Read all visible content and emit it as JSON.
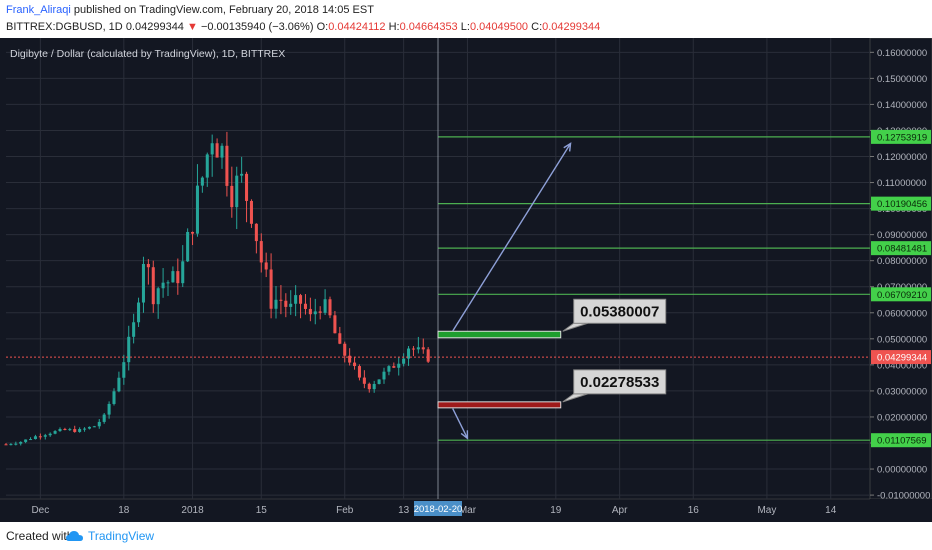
{
  "header": {
    "author": "Frank_Aliraqi",
    "published_text": "published on TradingView.com, February 20, 2018 14:05 EST",
    "symbol": "BITTREX:DGBUSD, 1D",
    "last": "0.04299344",
    "change": "−0.00135940 (−3.06%)",
    "o_label": "O:",
    "o": "0.04424112",
    "h_label": "H:",
    "h": "0.04664353",
    "l_label": "L:",
    "l": "0.04049500",
    "c_label": "C:",
    "c": "0.04299344"
  },
  "footer": {
    "created_with": "Created with",
    "brand": "TradingView"
  },
  "colors": {
    "background": "#131722",
    "grid": "#2a2e39",
    "up": "#26a69a",
    "down": "#ef5350",
    "level_line": "#4caf50",
    "axis_text": "#b2b5be",
    "up_box": "#1e9e2e",
    "down_box": "#9e1a1a",
    "arrow": "#8ea0d8"
  },
  "chart_data": {
    "type": "candlestick",
    "title": "Digibyte / Dollar (calculated by TradingView), 1D, BITTREX",
    "y_ticks": [
      "-0.01000000",
      "0.00000000",
      "0.01000000",
      "0.02000000",
      "0.03000000",
      "0.04000000",
      "0.05000000",
      "0.06000000",
      "0.07000000",
      "0.08000000",
      "0.09000000",
      "0.10000000",
      "0.11000000",
      "0.12000000",
      "0.13000000",
      "0.14000000",
      "0.15000000",
      "0.16000000"
    ],
    "ylim": [
      -0.0115,
      0.1655
    ],
    "x_ticks": [
      {
        "label": "Dec",
        "day": -42
      },
      {
        "label": "18",
        "day": -25
      },
      {
        "label": "2018",
        "day": -11
      },
      {
        "label": "15",
        "day": 3
      },
      {
        "label": "Feb",
        "day": 20
      },
      {
        "label": "13",
        "day": 32
      },
      {
        "label": "Mar",
        "day": 45
      },
      {
        "label": "19",
        "day": 63
      },
      {
        "label": "Apr",
        "day": 76
      },
      {
        "label": "16",
        "day": 91
      },
      {
        "label": "May",
        "day": 106
      },
      {
        "label": "14",
        "day": 119
      }
    ],
    "xlim": [
      -49,
      127
    ],
    "cursor": {
      "label": "2018-02-20",
      "day": 39
    },
    "last_price": {
      "label": "0.04299344",
      "value": 0.04299344
    },
    "levels": [
      {
        "label": "0.12753919",
        "value": 0.12753919
      },
      {
        "label": "0.10190456",
        "value": 0.10190456
      },
      {
        "label": "0.08481481",
        "value": 0.08481481
      },
      {
        "label": "0.06709210",
        "value": 0.0670921
      },
      {
        "label": "0.01107569",
        "value": 0.01107569
      }
    ],
    "targets": [
      {
        "label": "0.05380007",
        "value": 0.05380007,
        "box": [
          0.0504,
          0.0529
        ],
        "day_start": 39,
        "day_end": 64,
        "kind": "up"
      },
      {
        "label": "0.02278533",
        "value": 0.02278533,
        "box": [
          0.0235,
          0.0258
        ],
        "day_start": 39,
        "day_end": 64,
        "kind": "down"
      }
    ],
    "arrows": [
      {
        "from": [
          42,
          0.053
        ],
        "to": [
          66,
          0.125
        ]
      },
      {
        "from": [
          42,
          0.0232
        ],
        "to": [
          45,
          0.0118
        ]
      }
    ],
    "candle_anchors": [
      [
        -49,
        0.0095
      ],
      [
        -46,
        0.0105
      ],
      [
        -43,
        0.0125
      ],
      [
        -40,
        0.014
      ],
      [
        -37,
        0.015
      ],
      [
        -34,
        0.0148
      ],
      [
        -31,
        0.0165
      ],
      [
        -29,
        0.02
      ],
      [
        -27,
        0.03
      ],
      [
        -25,
        0.042
      ],
      [
        -23,
        0.055
      ],
      [
        -21,
        0.082
      ],
      [
        -19,
        0.068
      ],
      [
        -17,
        0.072
      ],
      [
        -15,
        0.072
      ],
      [
        -13,
        0.078
      ],
      [
        -11,
        0.096
      ],
      [
        -9,
        0.112
      ],
      [
        -7,
        0.13
      ],
      [
        -5,
        0.122
      ],
      [
        -3,
        0.108
      ],
      [
        -1,
        0.11
      ],
      [
        1,
        0.1
      ],
      [
        3,
        0.08
      ],
      [
        5,
        0.065
      ],
      [
        7,
        0.065
      ],
      [
        9,
        0.061
      ],
      [
        11,
        0.064
      ],
      [
        13,
        0.058
      ],
      [
        15,
        0.064
      ],
      [
        17,
        0.058
      ],
      [
        19,
        0.046
      ],
      [
        21,
        0.042
      ],
      [
        23,
        0.034
      ],
      [
        25,
        0.032
      ],
      [
        27,
        0.035
      ],
      [
        29,
        0.038
      ],
      [
        31,
        0.042
      ],
      [
        33,
        0.047
      ],
      [
        35,
        0.045
      ],
      [
        37,
        0.043
      ]
    ]
  }
}
